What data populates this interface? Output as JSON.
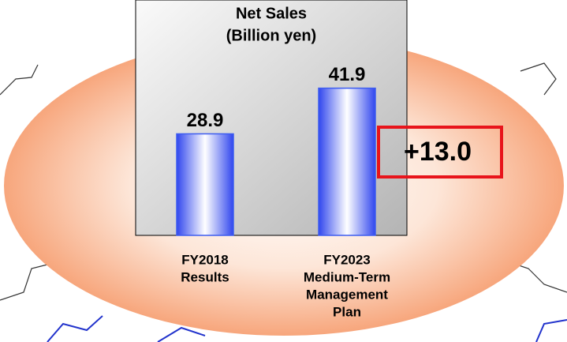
{
  "chart_data": {
    "type": "bar",
    "title": "Net Sales",
    "subtitle": "(Billion yen)",
    "categories": [
      [
        "FY2018",
        "Results"
      ],
      [
        "FY2023",
        "Medium-Term",
        "Management",
        "Plan"
      ]
    ],
    "values": [
      28.9,
      41.9
    ],
    "color": "#3d5cf0",
    "ylim": [
      0,
      67
    ],
    "annotation": "+13.0",
    "annotation_color": "#e8141b"
  }
}
